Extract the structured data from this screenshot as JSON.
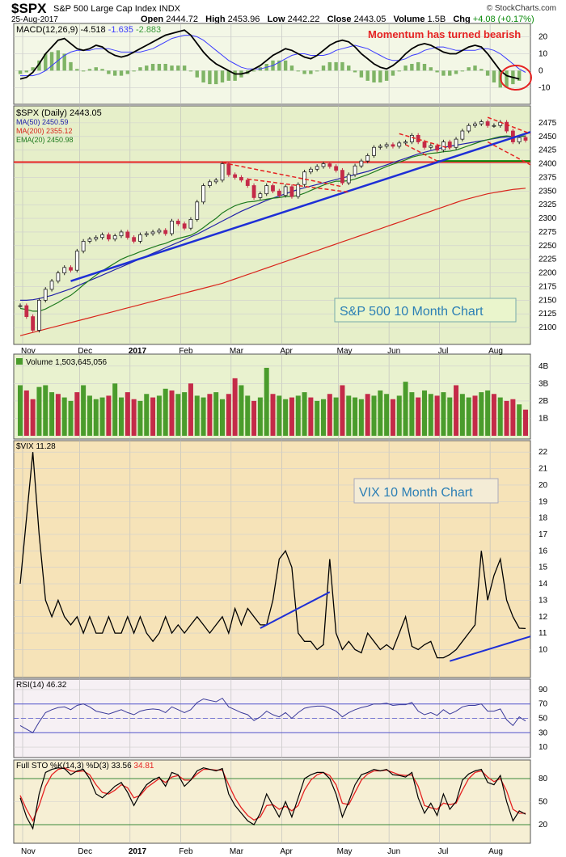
{
  "header": {
    "symbol": "$SPX",
    "name": "S&P 500 Large Cap Index",
    "exchange": "INDX",
    "date": "25-Aug-2017",
    "brand": "© StockCharts.com",
    "open_label": "Open",
    "open": "2444.72",
    "high_label": "High",
    "high": "2453.96",
    "low_label": "Low",
    "low": "2442.22",
    "close_label": "Close",
    "close": "2443.05",
    "volume_label": "Volume",
    "volume": "1.5B",
    "chg_label": "Chg",
    "chg": "+4.08 (+0.17%)"
  },
  "colors": {
    "macd_bg": "#f3f7e6",
    "price_bg": "#e6efc9",
    "volume_bg": "#e9f2cf",
    "vix_bg": "#f6e3b8",
    "rsi_bg": "#f6f0f4",
    "sto_bg": "#f6efd4",
    "up_bar": "#4a9c2c",
    "down_bar": "#c42a48",
    "annotation_red": "#e52222",
    "trend_blue": "#1e2fd6"
  },
  "chart_data": [
    {
      "type": "line",
      "panel": "macd",
      "legend": [
        "MACD(12,26,9)",
        "-4.518",
        "-1.635",
        "-2.883"
      ],
      "y_ticks": [
        "20",
        "10",
        "0",
        "-10"
      ],
      "ylim": [
        -18,
        26
      ],
      "annotation": "Momentum has turned bearish",
      "macd": [
        -5,
        -4,
        -1,
        4,
        10,
        14,
        18,
        19,
        16,
        13,
        12,
        13,
        15,
        14,
        11,
        9,
        8,
        9,
        11,
        13,
        15,
        17,
        19,
        21,
        22,
        23,
        24,
        21,
        16,
        11,
        7,
        4,
        2,
        0,
        -2,
        -2,
        -1,
        1,
        3,
        6,
        9,
        11,
        13,
        12,
        10,
        8,
        7,
        9,
        12,
        15,
        17,
        18,
        17,
        14,
        10,
        7,
        4,
        2,
        1,
        3,
        6,
        10,
        13,
        15,
        16,
        15,
        13,
        11,
        10,
        10,
        12,
        14,
        15,
        14,
        10,
        5,
        0,
        -3,
        -4,
        -5
      ],
      "signal": [
        -3,
        -3,
        -3,
        -2,
        0,
        3,
        6,
        9,
        11,
        12,
        12,
        12,
        13,
        13,
        13,
        12,
        11,
        11,
        11,
        11,
        12,
        13,
        15,
        17,
        19,
        20,
        21,
        21,
        20,
        18,
        15,
        12,
        9,
        6,
        4,
        2,
        1,
        1,
        1,
        2,
        3,
        5,
        7,
        9,
        10,
        10,
        9,
        9,
        9,
        10,
        12,
        13,
        14,
        15,
        14,
        13,
        11,
        9,
        7,
        6,
        6,
        7,
        9,
        10,
        12,
        13,
        14,
        14,
        13,
        12,
        12,
        12,
        12,
        13,
        13,
        12,
        10,
        7,
        4,
        1,
        -1
      ]
    },
    {
      "type": "line",
      "panel": "price",
      "legend": [
        "$SPX (Daily) 2443.05",
        "MA(50) 2450.59",
        "MA(200) 2355.12",
        "EMA(20) 2450.98"
      ],
      "annotation": "S&P 500 10 Month Chart",
      "y_ticks": [
        "2475",
        "2450",
        "2425",
        "2400",
        "2375",
        "2350",
        "2325",
        "2300",
        "2275",
        "2250",
        "2225",
        "2200",
        "2175",
        "2150",
        "2125",
        "2100"
      ],
      "ylim": [
        2075,
        2500
      ],
      "x_ticks": [
        "Nov",
        "Dec",
        "2017",
        "Feb",
        "Mar",
        "Apr",
        "May",
        "Jun",
        "Jul",
        "Aug"
      ],
      "close": [
        2140,
        2120,
        2095,
        2150,
        2170,
        2185,
        2200,
        2210,
        2205,
        2240,
        2258,
        2262,
        2265,
        2270,
        2262,
        2268,
        2275,
        2265,
        2258,
        2270,
        2272,
        2275,
        2278,
        2272,
        2295,
        2290,
        2282,
        2298,
        2330,
        2360,
        2367,
        2370,
        2400,
        2380,
        2375,
        2370,
        2360,
        2338,
        2345,
        2360,
        2350,
        2342,
        2358,
        2340,
        2362,
        2385,
        2390,
        2395,
        2400,
        2395,
        2388,
        2365,
        2380,
        2396,
        2405,
        2415,
        2430,
        2432,
        2435,
        2432,
        2438,
        2440,
        2452,
        2440,
        2430,
        2433,
        2425,
        2440,
        2430,
        2445,
        2460,
        2470,
        2473,
        2477,
        2470,
        2470,
        2476,
        2460,
        2440,
        2448,
        2443
      ],
      "ma50": [
        2150,
        2150,
        2151,
        2153,
        2156,
        2159,
        2163,
        2167,
        2171,
        2176,
        2181,
        2186,
        2191,
        2196,
        2201,
        2206,
        2211,
        2216,
        2221,
        2226,
        2231,
        2236,
        2241,
        2246,
        2251,
        2256,
        2261,
        2266,
        2271,
        2277,
        2283,
        2289,
        2295,
        2301,
        2307,
        2313,
        2318,
        2323,
        2328,
        2333,
        2337,
        2341,
        2345,
        2349,
        2353,
        2356,
        2359,
        2362,
        2365,
        2368,
        2371,
        2374,
        2377,
        2380,
        2383,
        2386,
        2390,
        2394,
        2398,
        2402,
        2406,
        2410,
        2414,
        2418,
        2421,
        2424,
        2427,
        2430,
        2432,
        2434,
        2436,
        2438,
        2440,
        2442,
        2444,
        2446,
        2448,
        2449,
        2450,
        2450,
        2450.59
      ],
      "ma200": [
        2085,
        2088,
        2091,
        2094,
        2097,
        2100,
        2103,
        2106,
        2109,
        2112,
        2115,
        2118,
        2121,
        2124,
        2127,
        2130,
        2133,
        2136,
        2139,
        2142,
        2145,
        2148,
        2151,
        2154,
        2157,
        2160,
        2163,
        2166,
        2169,
        2172,
        2175,
        2178,
        2181,
        2185,
        2189,
        2193,
        2197,
        2201,
        2205,
        2209,
        2213,
        2217,
        2221,
        2225,
        2229,
        2233,
        2237,
        2241,
        2245,
        2249,
        2253,
        2257,
        2261,
        2265,
        2269,
        2273,
        2277,
        2281,
        2285,
        2289,
        2293,
        2297,
        2301,
        2305,
        2309,
        2313,
        2317,
        2321,
        2325,
        2329,
        2333,
        2336,
        2339,
        2342,
        2345,
        2347,
        2349,
        2351,
        2353,
        2354,
        2355.12
      ],
      "ema20": [
        2135,
        2133,
        2130,
        2130,
        2134,
        2140,
        2146,
        2153,
        2159,
        2168,
        2178,
        2187,
        2196,
        2204,
        2211,
        2218,
        2225,
        2230,
        2234,
        2239,
        2243,
        2247,
        2251,
        2254,
        2259,
        2263,
        2266,
        2269,
        2275,
        2283,
        2292,
        2300,
        2310,
        2317,
        2323,
        2327,
        2330,
        2331,
        2333,
        2335,
        2337,
        2338,
        2340,
        2340,
        2342,
        2346,
        2351,
        2356,
        2361,
        2365,
        2368,
        2368,
        2369,
        2372,
        2376,
        2380,
        2385,
        2390,
        2395,
        2399,
        2403,
        2407,
        2412,
        2415,
        2417,
        2419,
        2420,
        2422,
        2423,
        2425,
        2429,
        2433,
        2437,
        2441,
        2444,
        2447,
        2450,
        2451,
        2450,
        2450,
        2450.98
      ],
      "horizontal_red_level": 2403,
      "horizontal_green_level": 2405
    },
    {
      "type": "bar",
      "panel": "volume",
      "legend": [
        "Volume 1,503,645,056"
      ],
      "y_ticks": [
        "4B",
        "3B",
        "2B",
        "1B"
      ],
      "ylim": [
        0,
        4.5
      ],
      "values": [
        2.9,
        2.6,
        2.1,
        2.8,
        2.9,
        2.5,
        2.4,
        2.2,
        2.0,
        2.5,
        2.9,
        2.3,
        2.1,
        2.2,
        2.3,
        3.0,
        2.2,
        2.5,
        2.1,
        2.0,
        2.4,
        2.2,
        2.3,
        2.7,
        2.6,
        2.4,
        2.5,
        3.0,
        2.3,
        2.2,
        2.4,
        2.5,
        2.1,
        2.4,
        3.3,
        2.9,
        2.3,
        2.0,
        2.2,
        3.9,
        2.4,
        2.3,
        2.1,
        2.2,
        2.3,
        2.5,
        2.2,
        2.0,
        2.1,
        2.4,
        2.2,
        2.9,
        2.3,
        2.2,
        2.1,
        2.4,
        2.3,
        2.6,
        2.4,
        2.1,
        2.3,
        3.1,
        2.5,
        2.2,
        2.6,
        2.4,
        2.3,
        2.5,
        2.2,
        2.9,
        2.4,
        2.2,
        2.3,
        2.5,
        2.6,
        2.4,
        2.2,
        2.0,
        2.1,
        1.8,
        1.5
      ],
      "down_days": [
        1,
        2,
        6,
        9,
        14,
        17,
        18,
        21,
        24,
        27,
        30,
        33,
        34,
        37,
        40,
        43,
        46,
        49,
        51,
        55,
        59,
        63,
        66,
        69,
        72,
        75,
        77,
        78,
        80
      ]
    },
    {
      "type": "line",
      "panel": "vix",
      "legend": [
        "$VIX 11.28"
      ],
      "annotation": "VIX 10 Month Chart",
      "y_ticks": [
        "22",
        "21",
        "20",
        "19",
        "18",
        "17",
        "16",
        "15",
        "14",
        "13",
        "12",
        "11",
        "10"
      ],
      "ylim": [
        8.5,
        22.5
      ],
      "close": [
        14,
        18,
        22,
        17,
        13,
        12,
        13,
        12,
        11.5,
        12,
        11,
        12,
        11,
        11,
        12,
        11,
        11,
        12,
        11,
        12,
        11,
        10.5,
        11,
        12,
        11,
        11.5,
        11,
        11.5,
        12,
        11.5,
        11,
        11.5,
        12,
        11,
        12.5,
        11.5,
        12.5,
        12,
        11.5,
        11.5,
        13,
        15.5,
        16,
        15,
        11,
        10.5,
        10.5,
        10,
        10.3,
        15.5,
        11,
        10,
        10.5,
        10,
        9.8,
        11,
        10.5,
        10,
        10.3,
        10,
        11,
        12,
        10.2,
        10,
        10.3,
        10.5,
        9.5,
        9.5,
        9.7,
        10,
        10.5,
        11,
        11.5,
        16,
        13,
        14.5,
        15.5,
        13,
        12,
        11.3,
        11.28
      ],
      "trendlines": [
        "up",
        "up"
      ]
    },
    {
      "type": "line",
      "panel": "rsi",
      "legend": [
        "RSI(14)",
        "46.32"
      ],
      "y_ticks": [
        "90",
        "70",
        "50",
        "30",
        "10"
      ],
      "ylim": [
        0,
        100
      ],
      "values": [
        40,
        35,
        30,
        45,
        58,
        62,
        65,
        66,
        62,
        68,
        70,
        66,
        60,
        58,
        56,
        59,
        62,
        58,
        55,
        60,
        62,
        63,
        62,
        58,
        66,
        62,
        58,
        62,
        72,
        77,
        75,
        73,
        78,
        66,
        62,
        58,
        55,
        47,
        52,
        60,
        55,
        52,
        58,
        50,
        58,
        64,
        66,
        67,
        67,
        64,
        60,
        52,
        58,
        62,
        65,
        67,
        70,
        70,
        71,
        68,
        69,
        69,
        72,
        60,
        55,
        58,
        54,
        62,
        56,
        60,
        66,
        68,
        68,
        70,
        60,
        60,
        63,
        48,
        40,
        52,
        46.32
      ]
    },
    {
      "type": "line",
      "panel": "full_sto",
      "legend": [
        "Full STO %K(14,3) %D(3)",
        "33.56",
        "34.81"
      ],
      "y_ticks": [
        "80",
        "50",
        "20"
      ],
      "ylim": [
        0,
        100
      ],
      "k": [
        55,
        30,
        15,
        60,
        88,
        92,
        94,
        93,
        85,
        90,
        92,
        80,
        60,
        55,
        62,
        70,
        75,
        62,
        45,
        60,
        72,
        78,
        82,
        70,
        88,
        85,
        70,
        78,
        90,
        94,
        92,
        90,
        93,
        60,
        45,
        35,
        25,
        20,
        35,
        60,
        45,
        30,
        50,
        30,
        55,
        80,
        85,
        88,
        88,
        80,
        60,
        30,
        50,
        72,
        85,
        88,
        92,
        90,
        92,
        85,
        84,
        82,
        88,
        55,
        35,
        48,
        32,
        60,
        40,
        50,
        78,
        86,
        90,
        92,
        75,
        72,
        84,
        50,
        25,
        38,
        33.56
      ],
      "d": [
        58,
        40,
        25,
        45,
        70,
        85,
        92,
        94,
        90,
        89,
        90,
        85,
        72,
        62,
        60,
        65,
        72,
        68,
        55,
        58,
        68,
        74,
        80,
        75,
        82,
        84,
        78,
        78,
        86,
        92,
        92,
        91,
        91,
        72,
        55,
        42,
        32,
        26,
        30,
        45,
        46,
        40,
        44,
        38,
        45,
        65,
        78,
        85,
        88,
        84,
        72,
        48,
        46,
        62,
        78,
        86,
        90,
        90,
        91,
        88,
        85,
        84,
        85,
        70,
        45,
        42,
        40,
        48,
        46,
        48,
        65,
        80,
        88,
        90,
        82,
        76,
        80,
        64,
        40,
        35,
        34.81
      ]
    }
  ]
}
